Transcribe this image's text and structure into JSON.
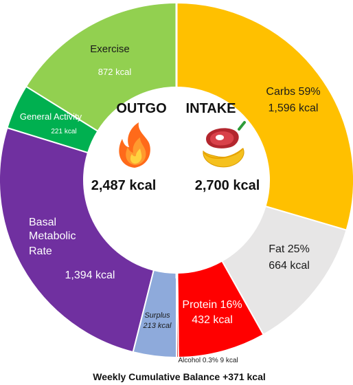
{
  "chart_data": {
    "type": "pie",
    "variant": "donut",
    "outgo": {
      "title": "OUTGO",
      "total_label": "2,487 kcal",
      "total": 2487,
      "icon": "fire-icon",
      "slices": [
        {
          "name": "Exercise",
          "value": 872,
          "value_label": "872 kcal",
          "color": "#92d050"
        },
        {
          "name": "General Activity",
          "value": 221,
          "value_label": "221 kcal",
          "color": "#00b050"
        },
        {
          "name": "Basal Metabolic Rate",
          "value": 1394,
          "value_label": "1,394 kcal",
          "color": "#7030a0"
        },
        {
          "name": "Surplus",
          "value": 213,
          "value_label": "213 kcal",
          "color": "#8eaadb"
        }
      ]
    },
    "intake": {
      "title": "INTAKE",
      "total_label": "2,700 kcal",
      "total": 2700,
      "icon": "food-icon",
      "slices": [
        {
          "name": "Carbs",
          "percent_label": "59%",
          "value": 1596,
          "value_label": "1,596 kcal",
          "color": "#ffc000"
        },
        {
          "name": "Fat",
          "percent_label": "25%",
          "value": 664,
          "value_label": "664 kcal",
          "color": "#e7e6e6"
        },
        {
          "name": "Protein",
          "percent_label": "16%",
          "value": 432,
          "value_label": "432 kcal",
          "color": "#ff0000"
        },
        {
          "name": "Alcohol",
          "percent_label": "0.3%",
          "value": 9,
          "value_label": "9 kcal",
          "color": "#c00000"
        }
      ]
    },
    "footer": "Weekly Cumulative Balance +371 kcal"
  },
  "labels": {
    "exercise": "Exercise",
    "exercise_value": "872 kcal",
    "general_activity": "General Activity",
    "general_activity_value": "221 kcal",
    "bmr_line1": "Basal",
    "bmr_line2": "Metabolic",
    "bmr_line3": "Rate",
    "bmr_value": "1,394 kcal",
    "surplus": "Surplus",
    "surplus_value": "213 kcal",
    "carbs": "Carbs 59%",
    "carbs_value": "1,596 kcal",
    "fat": "Fat 25%",
    "fat_value": "664 kcal",
    "protein": "Protein 16%",
    "protein_value": "432 kcal",
    "alcohol": "Alcohol 0.3%  9 kcal"
  }
}
